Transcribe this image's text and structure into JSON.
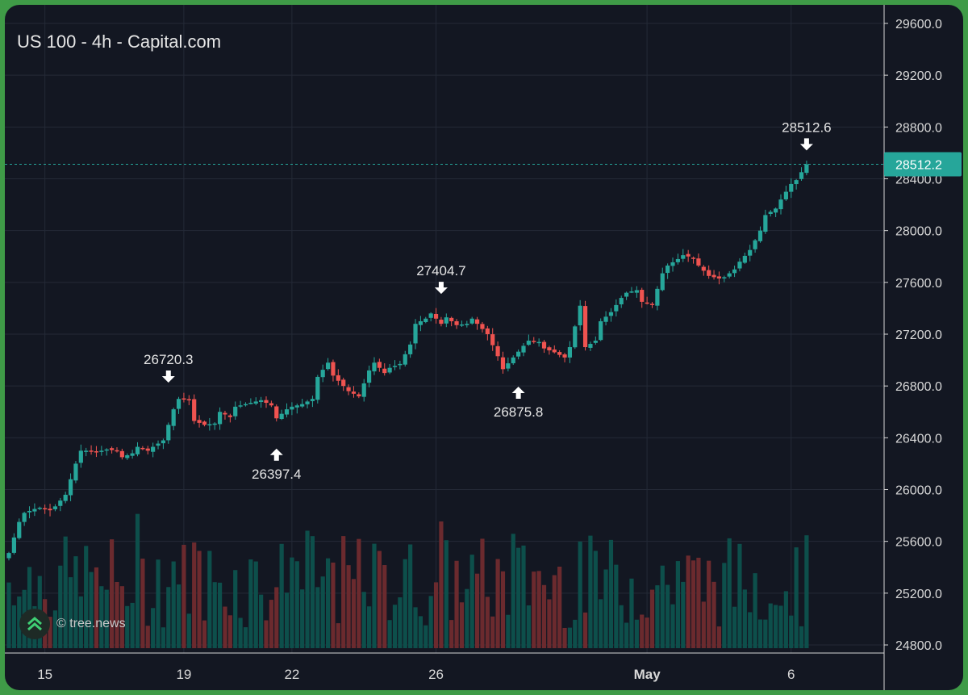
{
  "chart_data": {
    "type": "candlestick",
    "title": "US 100 - 4h - Capital.com",
    "watermark": "© tree.news",
    "y_axis": {
      "ticks": [
        29600.0,
        29200.0,
        28800.0,
        28400.0,
        28000.0,
        27600.0,
        27200.0,
        26800.0,
        26400.0,
        26000.0,
        25600.0,
        25200.0,
        24800.0
      ],
      "range": [
        24700,
        29700
      ],
      "side": "right"
    },
    "x_axis": {
      "ticks": [
        {
          "label": "15",
          "index": 7,
          "bold": false
        },
        {
          "label": "19",
          "index": 34,
          "bold": false
        },
        {
          "label": "22",
          "index": 55,
          "bold": false
        },
        {
          "label": "26",
          "index": 83,
          "bold": false
        },
        {
          "label": "May",
          "index": 124,
          "bold": true
        },
        {
          "label": "6",
          "index": 152,
          "bold": false
        }
      ]
    },
    "current_price": {
      "label": "28512.2",
      "value": 28512.2
    },
    "annotations": [
      {
        "label": "26720.3",
        "index": 31,
        "value": 26720.3,
        "type": "high"
      },
      {
        "label": "26397.4",
        "index": 52,
        "value": 26397.4,
        "type": "low"
      },
      {
        "label": "27404.7",
        "index": 84,
        "value": 27404.7,
        "type": "high"
      },
      {
        "label": "26875.8",
        "index": 99,
        "value": 26875.8,
        "type": "low"
      },
      {
        "label": "28512.6",
        "index": 155,
        "value": 28512.6,
        "type": "high"
      }
    ],
    "close_anchors": [
      [
        0,
        25510
      ],
      [
        1,
        25750
      ],
      [
        2,
        25820
      ],
      [
        3,
        25850
      ],
      [
        4,
        25860
      ],
      [
        5,
        25840
      ],
      [
        6,
        25870
      ],
      [
        7,
        25960
      ],
      [
        8,
        26200
      ],
      [
        9,
        26300
      ],
      [
        10,
        26300
      ],
      [
        11,
        26290
      ],
      [
        12,
        26310
      ],
      [
        13,
        26300
      ],
      [
        14,
        26250
      ],
      [
        15,
        26280
      ],
      [
        16,
        26330
      ],
      [
        17,
        26300
      ],
      [
        18,
        26330
      ],
      [
        19,
        26380
      ],
      [
        20,
        26620
      ],
      [
        21,
        26700
      ],
      [
        22,
        26690
      ],
      [
        23,
        26530
      ],
      [
        24,
        26500
      ],
      [
        25,
        26510
      ],
      [
        26,
        26600
      ],
      [
        27,
        26560
      ],
      [
        28,
        26640
      ],
      [
        29,
        26660
      ],
      [
        30,
        26670
      ],
      [
        31,
        26690
      ],
      [
        32,
        26650
      ],
      [
        33,
        26550
      ],
      [
        34,
        26620
      ],
      [
        35,
        26640
      ],
      [
        36,
        26660
      ],
      [
        37,
        26700
      ],
      [
        38,
        26870
      ],
      [
        39,
        26980
      ],
      [
        40,
        26880
      ],
      [
        41,
        26800
      ],
      [
        42,
        26760
      ],
      [
        43,
        26720
      ],
      [
        44,
        26920
      ],
      [
        45,
        26980
      ],
      [
        46,
        26900
      ],
      [
        47,
        26940
      ],
      [
        48,
        26970
      ],
      [
        49,
        27120
      ],
      [
        50,
        27280
      ],
      [
        51,
        27320
      ],
      [
        52,
        27360
      ],
      [
        53,
        27280
      ],
      [
        54,
        27330
      ],
      [
        55,
        27270
      ],
      [
        56,
        27280
      ],
      [
        57,
        27320
      ],
      [
        58,
        27240
      ],
      [
        59,
        27200
      ],
      [
        60,
        27030
      ],
      [
        61,
        26930
      ],
      [
        62,
        27020
      ],
      [
        63,
        27110
      ],
      [
        64,
        27150
      ],
      [
        65,
        27140
      ],
      [
        66,
        27090
      ],
      [
        67,
        27060
      ],
      [
        68,
        27020
      ],
      [
        69,
        27100
      ],
      [
        70,
        27420
      ],
      [
        71,
        27100
      ],
      [
        72,
        27150
      ],
      [
        73,
        27300
      ],
      [
        74,
        27370
      ],
      [
        75,
        27480
      ],
      [
        76,
        27520
      ],
      [
        77,
        27540
      ],
      [
        78,
        27450
      ],
      [
        79,
        27430
      ],
      [
        80,
        27670
      ],
      [
        81,
        27730
      ],
      [
        82,
        27780
      ],
      [
        83,
        27810
      ],
      [
        84,
        27790
      ],
      [
        85,
        27730
      ],
      [
        86,
        27650
      ],
      [
        87,
        27630
      ],
      [
        88,
        27640
      ],
      [
        89,
        27700
      ],
      [
        90,
        27760
      ],
      [
        91,
        27850
      ],
      [
        92,
        28000
      ],
      [
        93,
        28120
      ],
      [
        94,
        28170
      ],
      [
        95,
        28240
      ],
      [
        96,
        28360
      ],
      [
        97,
        28390
      ],
      [
        98,
        28512
      ]
    ],
    "last_candle_index": 155,
    "volume_note": "volume bars shown in lower pane"
  }
}
